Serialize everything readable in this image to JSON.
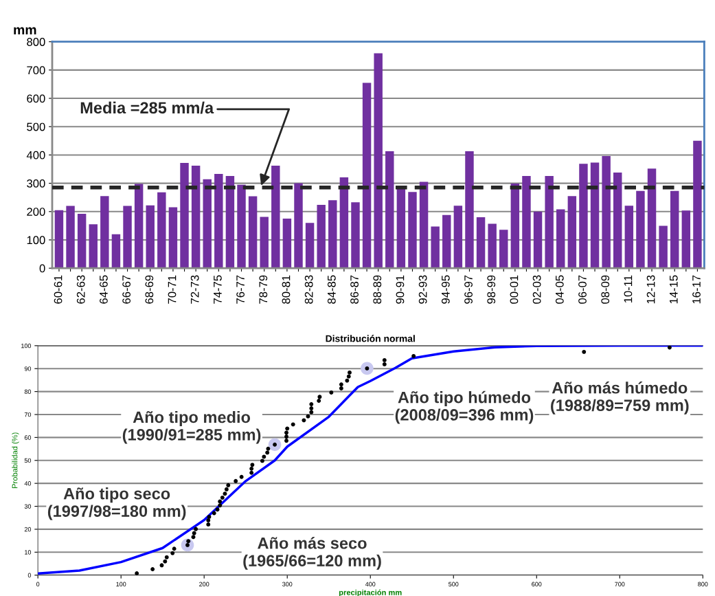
{
  "chart_data": [
    {
      "type": "bar",
      "ylabel": "mm",
      "categories": [
        "60-61",
        null,
        "62-63",
        null,
        "64-65",
        null,
        "66-67",
        null,
        "68-69",
        null,
        "70-71",
        null,
        "72-73",
        null,
        "74-75",
        null,
        "76-77",
        null,
        "78-79",
        null,
        "80-81",
        null,
        "82-83",
        null,
        "84-85",
        null,
        "86-87",
        null,
        "88-89",
        null,
        "90-91",
        null,
        "92-93",
        null,
        "94-95",
        null,
        "96-97",
        null,
        "98-99",
        null,
        "00-01",
        null,
        "02-03",
        null,
        "04-05",
        null,
        "06-07",
        null,
        "08-09",
        null,
        "10-11",
        null,
        "12-13",
        null,
        "14-15",
        null,
        "16-17"
      ],
      "values": [
        205,
        220,
        192,
        155,
        255,
        120,
        220,
        298,
        222,
        268,
        215,
        372,
        362,
        314,
        333,
        326,
        295,
        254,
        181,
        362,
        175,
        300,
        160,
        224,
        240,
        321,
        233,
        655,
        759,
        413,
        285,
        269,
        305,
        147,
        188,
        221,
        413,
        180,
        157,
        136,
        299,
        326,
        200,
        326,
        208,
        255,
        369,
        373,
        396,
        338,
        221,
        273,
        352,
        150,
        273,
        204,
        450
      ],
      "color": "#7030a0",
      "ylim": [
        0,
        800
      ],
      "yticks": [
        0,
        100,
        200,
        300,
        400,
        500,
        600,
        700,
        800
      ],
      "grid": "y",
      "ref_lines": [
        {
          "axis": "y",
          "value": 285,
          "label": "Media =285 mm/a",
          "color": "#262626",
          "line_style": "dashed"
        }
      ]
    },
    {
      "type": "scatter",
      "title": "Distribución normal",
      "xlabel": "precipitación mm",
      "ylabel": "Probabilidad (%)",
      "series": [
        {
          "type": "scatter",
          "color": "#c8c8f0",
          "x": [
            180,
            285,
            396
          ],
          "values": [
            13.1,
            56.9,
            90.1
          ]
        },
        {
          "type": "scatter",
          "color": "#000000",
          "x": [
            119,
            138,
            149,
            153,
            155,
            162,
            164,
            180,
            181,
            187,
            188,
            190,
            205,
            205,
            206,
            212,
            216,
            219,
            219,
            222,
            225,
            227,
            229,
            238,
            245,
            257,
            257,
            258,
            270,
            272,
            276,
            277,
            285,
            299,
            299,
            299,
            300,
            307,
            320,
            325,
            329,
            329,
            329,
            338,
            339,
            353,
            365,
            365,
            372,
            374,
            375,
            396,
            417,
            417,
            452,
            657,
            760
          ],
          "values": [
            0.8,
            2.6,
            4.3,
            6.0,
            7.8,
            9.6,
            11.5,
            13.1,
            14.8,
            16.6,
            18.3,
            20.1,
            22.1,
            23.9,
            25.4,
            27.0,
            28.6,
            30.4,
            32.1,
            33.8,
            35.5,
            37.4,
            39.2,
            41.0,
            42.8,
            44.6,
            46.4,
            48.1,
            49.8,
            51.6,
            53.4,
            55.1,
            56.9,
            58.6,
            60.4,
            62.1,
            63.9,
            65.7,
            67.5,
            69.2,
            71.0,
            72.7,
            74.5,
            76.0,
            77.7,
            79.6,
            81.4,
            83.1,
            84.8,
            86.6,
            88.3,
            90.1,
            91.9,
            93.7,
            95.5,
            97.3,
            99.2
          ]
        },
        {
          "type": "line",
          "color": "#0000ff",
          "x": [
            0,
            50,
            100,
            150,
            200,
            250,
            285,
            300,
            350,
            385,
            400,
            430,
            450,
            500,
            550,
            600,
            700,
            800
          ],
          "values": [
            0.7,
            2,
            5.7,
            11.8,
            24,
            41,
            50,
            56,
            69,
            82,
            84.6,
            90.3,
            94.5,
            97.5,
            99.3,
            99.9,
            100,
            100
          ]
        }
      ],
      "xlim": [
        0,
        800
      ],
      "xticks": [
        0,
        100,
        200,
        300,
        400,
        500,
        600,
        700,
        800
      ],
      "ylim": [
        0,
        100
      ],
      "yticks": [
        0,
        10,
        20,
        30,
        40,
        50,
        60,
        70,
        80,
        90,
        100
      ],
      "grid": "y",
      "annotations": [
        {
          "text": "Año tipo medio\n(1990/91=285 mm)",
          "x": 285,
          "y": 56.9
        },
        {
          "text": "Año tipo seco\n(1997/98=180 mm)",
          "x": 180,
          "y": 13.1
        },
        "Año más seco\n(1965/66=120 mm)",
        {
          "text": "Año tipo húmedo\n(2008/09=396 mm)",
          "x": 396,
          "y": 90.1
        },
        {
          "text": "Año más húmedo\n(1988/89=759 mm)",
          "x": 759,
          "y": 99.2
        }
      ]
    }
  ]
}
